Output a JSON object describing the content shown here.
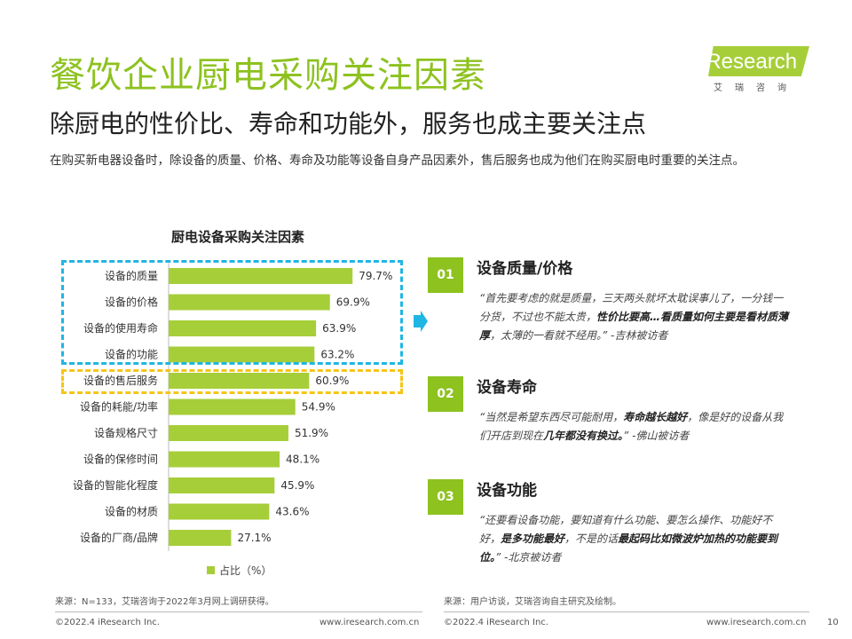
{
  "page": {
    "title": "餐饮企业厨电采购关注因素",
    "subtitle": "除厨电的性价比、寿命和功能外，服务也成主要关注点",
    "description": "在购买新电器设备时，除设备的质量、价格、寿命及功能等设备自身产品因素外，售后服务也成为他们在购买厨电时重要的关注点。"
  },
  "logo": {
    "text": "iResearch",
    "cn": "艾瑞咨询",
    "color": "#a6ce39"
  },
  "chart_data": {
    "type": "bar",
    "orientation": "horizontal",
    "title": "厨电设备采购关注因素",
    "categories": [
      "设备的质量",
      "设备的价格",
      "设备的使用寿命",
      "设备的功能",
      "设备的售后服务",
      "设备的耗能/功率",
      "设备规格尺寸",
      "设备的保修时间",
      "设备的智能化程度",
      "设备的材质",
      "设备的厂商/品牌"
    ],
    "series": [
      {
        "name": "占比（%）",
        "values": [
          79.7,
          69.9,
          63.9,
          63.2,
          60.9,
          54.9,
          51.9,
          48.1,
          45.9,
          43.6,
          27.1
        ],
        "labels": [
          "79.7%",
          "69.9%",
          "63.9%",
          "63.2%",
          "60.9%",
          "54.9%",
          "51.9%",
          "48.1%",
          "45.9%",
          "43.6%",
          "27.1%"
        ],
        "color": "#a6ce39"
      }
    ],
    "xlim": [
      0,
      100
    ],
    "legend_position": "bottom",
    "grid": false
  },
  "legend_label": "占比（%）",
  "highlight_colors": {
    "blue": "#20b6e4",
    "yellow": "#f5c518"
  },
  "findings": [
    {
      "num": "01",
      "title": "设备质量/价格",
      "q1": "“首先要考虑的就是质量，三天两头就坏太耽误事儿了，一分钱一分货，不过也不能太贵，",
      "q2": "性价比要高…看质量如何主要是看材质薄厚",
      "q3": "，太薄的一看就不经用。” -吉林被访者"
    },
    {
      "num": "02",
      "title": "设备寿命",
      "q1": "“当然是希望东西尽可能耐用，",
      "q2": "寿命越长越好",
      "q3": "，像是好的设备从我们开店到现在",
      "q4": "几年都没有换过。",
      "q5": "” -佛山被访者"
    },
    {
      "num": "03",
      "title": "设备功能",
      "q1": "“还要看设备功能，要知道有什么功能、要怎么操作、功能好不好，",
      "q2": "是多功能最好",
      "q3": "，不是的话",
      "q4": "最起码比如微波炉加热的功能要到位。",
      "q5": "” -北京被访者"
    }
  ],
  "sources": {
    "left": "来源：N=133，艾瑞咨询于2022年3月网上调研获得。",
    "right": "来源：用户访谈，艾瑞咨询自主研究及绘制。"
  },
  "footer": {
    "copyright": "©2022.4 iResearch Inc.",
    "url": "www.iresearch.com.cn",
    "page_number": "10"
  }
}
